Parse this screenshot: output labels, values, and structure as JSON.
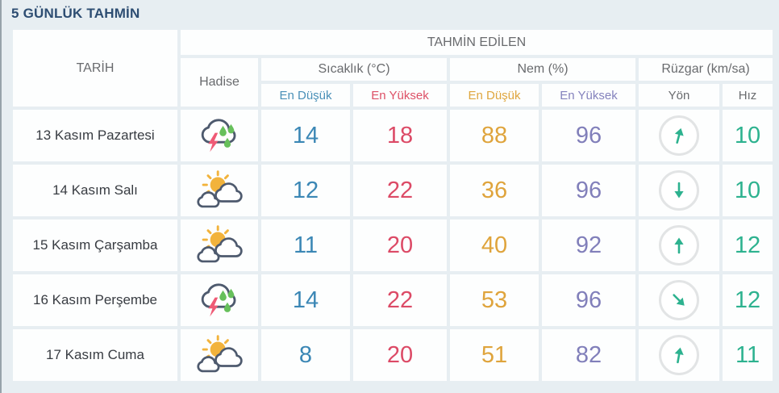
{
  "title": "5 GÜNLÜK TAHMİN",
  "colors": {
    "title_navy": "#2d4d72",
    "header_gray": "#696b6e",
    "temp_min_blue": "#3b87b5",
    "temp_max_red": "#dc4a66",
    "hum_min_orange": "#dfa43c",
    "hum_max_purple": "#817fba",
    "wind_teal": "#2db28f",
    "cloud_outline": "#4e5a6e",
    "sun_yellow": "#f2b33c",
    "lightning_pink": "#ef5a75",
    "raindrop_green": "#67c05b",
    "page_bg": "#e7eef2"
  },
  "table": {
    "headers": {
      "date": "TARİH",
      "predicted": "TAHMİN EDİLEN",
      "condition": "Hadise",
      "temperature": "Sıcaklık (°C)",
      "humidity": "Nem (%)",
      "wind": "Rüzgar (km/sa)",
      "min": "En Düşük",
      "max": "En Yüksek",
      "direction": "Yön",
      "speed": "Hız"
    },
    "rows": [
      {
        "date": "13 Kasım Pazartesi",
        "icon": "thunderstorm-rain",
        "temp_min": "14",
        "temp_max": "18",
        "hum_min": "88",
        "hum_max": "96",
        "wind_dir_deg": 15,
        "wind_speed": "10"
      },
      {
        "date": "14 Kasım Salı",
        "icon": "partly-cloudy",
        "temp_min": "12",
        "temp_max": "22",
        "hum_min": "36",
        "hum_max": "96",
        "wind_dir_deg": 180,
        "wind_speed": "10"
      },
      {
        "date": "15 Kasım Çarşamba",
        "icon": "partly-cloudy",
        "temp_min": "11",
        "temp_max": "20",
        "hum_min": "40",
        "hum_max": "92",
        "wind_dir_deg": 0,
        "wind_speed": "12"
      },
      {
        "date": "16 Kasım Perşembe",
        "icon": "thunderstorm-rain",
        "temp_min": "14",
        "temp_max": "22",
        "hum_min": "53",
        "hum_max": "96",
        "wind_dir_deg": 135,
        "wind_speed": "12"
      },
      {
        "date": "17 Kasım Cuma",
        "icon": "partly-cloudy",
        "temp_min": "8",
        "temp_max": "20",
        "hum_min": "51",
        "hum_max": "82",
        "wind_dir_deg": 10,
        "wind_speed": "11"
      }
    ]
  }
}
